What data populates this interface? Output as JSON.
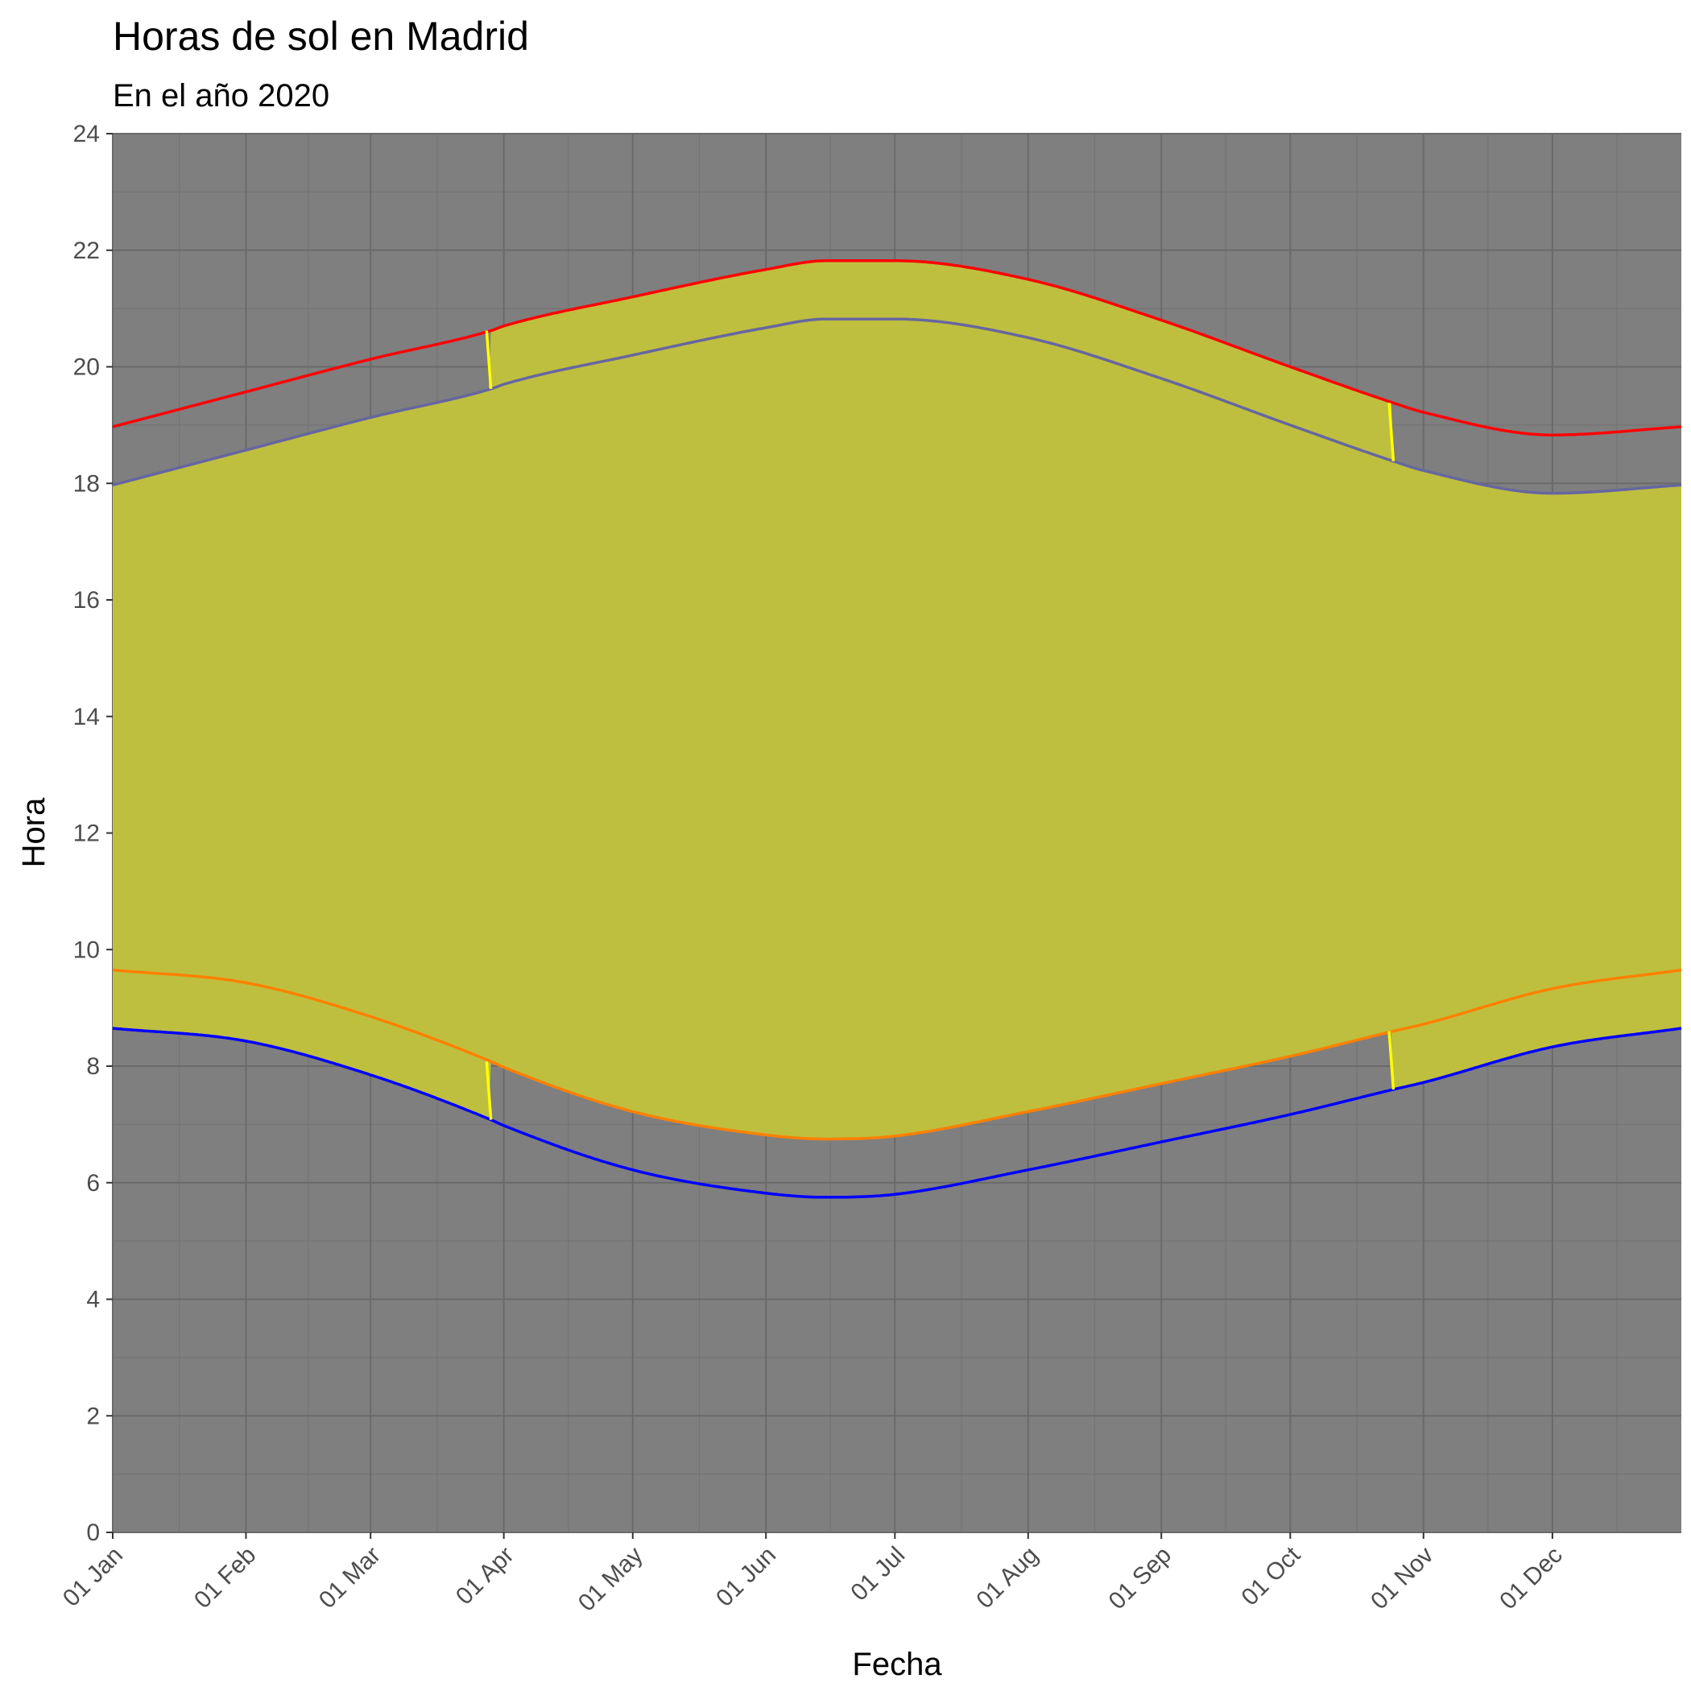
{
  "chart_data": {
    "type": "area",
    "title": "Horas de sol en Madrid",
    "subtitle": "En el año 2020",
    "xlabel": "Fecha",
    "ylabel": "Hora",
    "ylim": [
      0,
      24
    ],
    "xlim": [
      "2020-01-01",
      "2020-12-31"
    ],
    "x_ticks": [
      "01 Jan",
      "01 Feb",
      "01 Mar",
      "01 Apr",
      "01 May",
      "01 Jun",
      "01 Jul",
      "01 Aug",
      "01 Sep",
      "01 Oct",
      "01 Nov",
      "01 Dec"
    ],
    "x_tick_dates": [
      "2020-01-01",
      "2020-02-01",
      "2020-03-01",
      "2020-04-01",
      "2020-05-01",
      "2020-06-01",
      "2020-07-01",
      "2020-08-01",
      "2020-09-01",
      "2020-10-01",
      "2020-11-01",
      "2020-12-01"
    ],
    "y_ticks": [
      0,
      2,
      4,
      6,
      8,
      10,
      12,
      14,
      16,
      18,
      20,
      22,
      24
    ],
    "grid": true,
    "legend": "none",
    "dst_switch_dates": [
      "2020-03-29",
      "2020-10-25"
    ],
    "x": [
      "2020-01-01",
      "2020-02-01",
      "2020-03-01",
      "2020-03-29",
      "2020-04-01",
      "2020-05-01",
      "2020-06-01",
      "2020-06-15",
      "2020-07-01",
      "2020-08-01",
      "2020-09-01",
      "2020-10-01",
      "2020-10-25",
      "2020-11-01",
      "2020-12-01",
      "2020-12-31"
    ],
    "series": [
      {
        "values": [
          18.97,
          19.57,
          20.13,
          20.62,
          20.7,
          21.2,
          21.67,
          21.82,
          21.82,
          21.5,
          20.8,
          20.0,
          19.38,
          19.22,
          18.83,
          18.97
        ]
      },
      {
        "values": [
          17.97,
          18.57,
          19.13,
          19.62,
          19.7,
          20.2,
          20.67,
          20.82,
          20.82,
          20.5,
          19.8,
          19.0,
          18.38,
          18.22,
          17.83,
          17.97
        ]
      },
      {
        "values": [
          9.65,
          9.43,
          8.85,
          8.08,
          7.98,
          7.22,
          6.82,
          6.75,
          6.8,
          7.22,
          7.7,
          8.17,
          8.6,
          8.72,
          9.33,
          9.65
        ]
      },
      {
        "values": [
          8.65,
          8.43,
          7.85,
          7.08,
          6.98,
          6.22,
          5.82,
          5.75,
          5.8,
          6.22,
          6.7,
          7.17,
          7.6,
          7.72,
          8.33,
          8.65
        ]
      }
    ],
    "colors": {
      "panel": "#7f7f7f",
      "grid_major": "#6a6a6a",
      "grid_minor": "#747474",
      "daylight_fill": "#bfbf3f",
      "summer_sunset": "#ff0000",
      "winter_sunset": "#6666a0",
      "summer_sunrise": "#ff8000",
      "winter_sunrise": "#0000ff",
      "dst_switch": "#ffff00"
    }
  }
}
